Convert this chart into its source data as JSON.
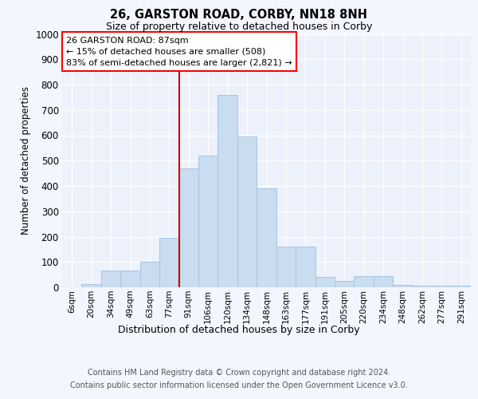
{
  "title_line1": "26, GARSTON ROAD, CORBY, NN18 8NH",
  "title_line2": "Size of property relative to detached houses in Corby",
  "xlabel": "Distribution of detached houses by size in Corby",
  "ylabel": "Number of detached properties",
  "categories": [
    "6sqm",
    "20sqm",
    "34sqm",
    "49sqm",
    "63sqm",
    "77sqm",
    "91sqm",
    "106sqm",
    "120sqm",
    "134sqm",
    "148sqm",
    "163sqm",
    "177sqm",
    "191sqm",
    "205sqm",
    "220sqm",
    "234sqm",
    "248sqm",
    "262sqm",
    "277sqm",
    "291sqm"
  ],
  "values": [
    0,
    13,
    65,
    65,
    100,
    195,
    470,
    520,
    760,
    595,
    390,
    160,
    160,
    40,
    25,
    45,
    45,
    10,
    5,
    5,
    5
  ],
  "bar_color": "#c9dcf0",
  "bar_edge_color": "#a8c4e0",
  "vline_idx": 6,
  "vline_color": "#cc0000",
  "annotation_text": "26 GARSTON ROAD: 87sqm\n← 15% of detached houses are smaller (508)\n83% of semi-detached houses are larger (2,821) →",
  "ylim": [
    0,
    1000
  ],
  "yticks": [
    0,
    100,
    200,
    300,
    400,
    500,
    600,
    700,
    800,
    900,
    1000
  ],
  "footer_line1": "Contains HM Land Registry data © Crown copyright and database right 2024.",
  "footer_line2": "Contains public sector information licensed under the Open Government Licence v3.0.",
  "fig_bg": "#f4f6ff",
  "plot_bg": "#edf1fb"
}
